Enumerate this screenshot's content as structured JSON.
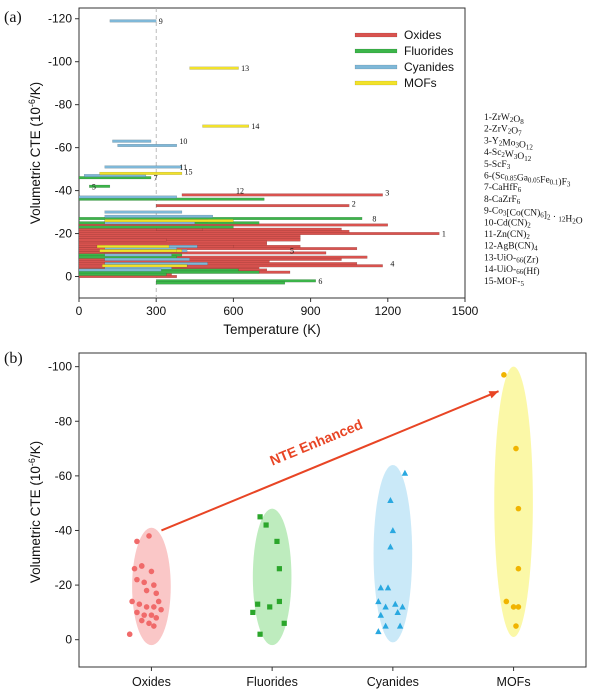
{
  "chart_data": [
    {
      "type": "range-bar",
      "panel_label": "(a)",
      "xlabel": "Temperature (K)",
      "ylabel": "Volumetric CTE (10",
      "ylabel_sup": "-6",
      "ylabel_end": "/K)",
      "xlim": [
        0,
        1500
      ],
      "ylim": [
        10,
        -125
      ],
      "xticks": [
        0,
        300,
        600,
        900,
        1200,
        1500
      ],
      "yticks": [
        0,
        -20,
        -40,
        -60,
        -80,
        -100,
        -120
      ],
      "reference_line_x": 300,
      "legend_position": "top-right",
      "series": [
        {
          "name": "Oxides",
          "color": "#d9534f",
          "bars": [
            [
              0,
              1400,
              -20
            ],
            [
              0,
              1050,
              -21
            ],
            [
              0,
              1200,
              -24
            ],
            [
              0,
              1020,
              -22
            ],
            [
              0,
              860,
              -19
            ],
            [
              0,
              860,
              -18
            ],
            [
              0,
              860,
              -17
            ],
            [
              0,
              730,
              -16
            ],
            [
              0,
              730,
              -15
            ],
            [
              0,
              860,
              -14
            ],
            [
              0,
              300,
              -13
            ],
            [
              0,
              400,
              -12
            ],
            [
              0,
              400,
              -11
            ],
            [
              0,
              1080,
              -13
            ],
            [
              0,
              960,
              -11
            ],
            [
              0,
              1120,
              -9
            ],
            [
              0,
              1020,
              -8
            ],
            [
              0,
              740,
              -7
            ],
            [
              0,
              700,
              -4
            ],
            [
              0,
              1180,
              -5
            ],
            [
              0,
              1080,
              -6
            ],
            [
              0,
              730,
              -3
            ],
            [
              0,
              820,
              -2
            ],
            [
              0,
              360,
              -1
            ],
            [
              0,
              380,
              0
            ],
            [
              300,
              600,
              -14
            ],
            [
              300,
              480,
              -22
            ],
            [
              300,
              380,
              -27
            ],
            [
              300,
              1050,
              -33
            ],
            [
              400,
              1180,
              -38
            ],
            [
              0,
              340,
              -17
            ]
          ]
        },
        {
          "name": "Fluorides",
          "color": "#3cb54a",
          "bars": [
            [
              0,
              1100,
              -27
            ],
            [
              0,
              720,
              -36
            ],
            [
              0,
              280,
              -46
            ],
            [
              40,
              120,
              -42
            ],
            [
              0,
              700,
              -25
            ],
            [
              0,
              600,
              -23
            ],
            [
              0,
              400,
              -10
            ],
            [
              0,
              380,
              -9
            ],
            [
              0,
              620,
              -3
            ],
            [
              0,
              700,
              -2
            ],
            [
              0,
              340,
              -1
            ],
            [
              300,
              920,
              2
            ],
            [
              300,
              800,
              3
            ]
          ]
        },
        {
          "name": "Cyanides",
          "color": "#7fb8d8",
          "bars": [
            [
              120,
              300,
              -119
            ],
            [
              100,
              400,
              -51
            ],
            [
              20,
              260,
              -47
            ],
            [
              130,
              280,
              -63
            ],
            [
              150,
              380,
              -61
            ],
            [
              0,
              380,
              -37
            ],
            [
              100,
              400,
              -30
            ],
            [
              100,
              520,
              -28
            ],
            [
              100,
              500,
              -26
            ],
            [
              100,
              450,
              -25
            ],
            [
              100,
              460,
              -14
            ],
            [
              100,
              380,
              -13
            ],
            [
              100,
              420,
              -12
            ],
            [
              100,
              360,
              -10
            ],
            [
              100,
              430,
              -8
            ],
            [
              100,
              500,
              -6
            ],
            [
              100,
              420,
              -5
            ],
            [
              100,
              360,
              -4
            ],
            [
              0,
              320,
              -3
            ]
          ]
        },
        {
          "name": "MOFs",
          "color": "#f2e22a",
          "bars": [
            [
              430,
              620,
              -97
            ],
            [
              480,
              660,
              -70
            ],
            [
              80,
              400,
              -48
            ],
            [
              70,
              350,
              -14
            ],
            [
              90,
              400,
              -12
            ],
            [
              80,
              380,
              -12
            ],
            [
              100,
              600,
              -26
            ],
            [
              90,
              420,
              -5
            ]
          ]
        }
      ],
      "annotations": [
        {
          "text": "1",
          "x": 1410,
          "y": -20
        },
        {
          "text": "2",
          "x": 1060,
          "y": -34
        },
        {
          "text": "3",
          "x": 1190,
          "y": -39
        },
        {
          "text": "4",
          "x": 1210,
          "y": -6
        },
        {
          "text": "5",
          "x": 50,
          "y": -42
        },
        {
          "text": "5",
          "x": 820,
          "y": -12
        },
        {
          "text": "6",
          "x": 930,
          "y": 2
        },
        {
          "text": "7",
          "x": 290,
          "y": -46
        },
        {
          "text": "8",
          "x": 1140,
          "y": -27
        },
        {
          "text": "9",
          "x": 310,
          "y": -119
        },
        {
          "text": "10",
          "x": 390,
          "y": -63
        },
        {
          "text": "11",
          "x": 390,
          "y": -51
        },
        {
          "text": "12",
          "x": 610,
          "y": -40
        },
        {
          "text": "13",
          "x": 630,
          "y": -97
        },
        {
          "text": "14",
          "x": 670,
          "y": -70
        },
        {
          "text": "15",
          "x": 410,
          "y": -49
        }
      ],
      "compound_list": [
        "1-ZrW2O8",
        "2-ZrV2O7",
        "3-Y2Mo3O12",
        "4-Sc2W3O12",
        "5-ScF3",
        "6-(Sc0.85Ga0.05Fe0.1)F3",
        "7-CaHfF6",
        "8-CaZrF6",
        "9-Co3[Co(CN)6]2 · 12H2O",
        "10-Cd(CN)2",
        "11-Zn(CN)2",
        "12-AgB(CN)4",
        "13-UiO-66(Zr)",
        "14-UiO-66(Hf)",
        "15-MOF-5"
      ]
    },
    {
      "type": "scatter",
      "panel_label": "(b)",
      "xlabel": "",
      "ylabel": "Volumetric CTE (10",
      "ylabel_sup": "-6",
      "ylabel_end": "/K)",
      "ylim": [
        10,
        -105
      ],
      "yticks": [
        0,
        -20,
        -40,
        -60,
        -80,
        -100
      ],
      "categories": [
        "Oxides",
        "Fluorides",
        "Cyanides",
        "MOFs"
      ],
      "annotation": {
        "text": "NTE Enhanced",
        "color": "#e84525"
      },
      "series": [
        {
          "name": "Oxides",
          "marker": "circle",
          "color": "#f06a6a",
          "ellipse_color": "#f8b4b4",
          "points": [
            [
              -0.12,
              -36
            ],
            [
              -0.02,
              -38
            ],
            [
              -0.14,
              -26
            ],
            [
              -0.08,
              -27
            ],
            [
              0.0,
              -25
            ],
            [
              -0.12,
              -22
            ],
            [
              -0.06,
              -21
            ],
            [
              0.02,
              -20
            ],
            [
              -0.04,
              -18
            ],
            [
              0.04,
              -17
            ],
            [
              -0.16,
              -14
            ],
            [
              -0.1,
              -13
            ],
            [
              -0.04,
              -12
            ],
            [
              0.02,
              -12
            ],
            [
              0.08,
              -11
            ],
            [
              -0.12,
              -10
            ],
            [
              -0.06,
              -9
            ],
            [
              0.0,
              -9
            ],
            [
              0.04,
              -8
            ],
            [
              -0.08,
              -7
            ],
            [
              -0.02,
              -6
            ],
            [
              0.02,
              -5
            ],
            [
              -0.18,
              -2
            ],
            [
              -0.08,
              -27
            ],
            [
              0.06,
              -14
            ]
          ]
        },
        {
          "name": "Fluorides",
          "marker": "square",
          "color": "#2ba62b",
          "ellipse_color": "#a8e6a8",
          "points": [
            [
              -0.1,
              -45
            ],
            [
              -0.05,
              -42
            ],
            [
              0.04,
              -36
            ],
            [
              0.06,
              -26
            ],
            [
              -0.12,
              -13
            ],
            [
              -0.02,
              -12
            ],
            [
              0.06,
              -14
            ],
            [
              -0.16,
              -10
            ],
            [
              0.1,
              -6
            ],
            [
              -0.1,
              -2
            ]
          ]
        },
        {
          "name": "Cyanides",
          "marker": "triangle",
          "color": "#29a8e0",
          "ellipse_color": "#b8e2f6",
          "points": [
            [
              0.1,
              -61
            ],
            [
              -0.02,
              -51
            ],
            [
              0.0,
              -40
            ],
            [
              -0.02,
              -34
            ],
            [
              -0.1,
              -19
            ],
            [
              -0.04,
              -19
            ],
            [
              -0.12,
              -14
            ],
            [
              0.02,
              -13
            ],
            [
              0.08,
              -12
            ],
            [
              -0.06,
              -12
            ],
            [
              -0.1,
              -9
            ],
            [
              0.04,
              -10
            ],
            [
              -0.06,
              -5
            ],
            [
              0.06,
              -5
            ],
            [
              -0.12,
              -3
            ]
          ]
        },
        {
          "name": "MOFs",
          "marker": "circle",
          "color": "#f0b400",
          "ellipse_color": "#faf58a",
          "points": [
            [
              -0.08,
              -97
            ],
            [
              0.02,
              -70
            ],
            [
              0.04,
              -48
            ],
            [
              0.04,
              -26
            ],
            [
              -0.06,
              -14
            ],
            [
              0.0,
              -12
            ],
            [
              0.04,
              -12
            ],
            [
              0.02,
              -5
            ]
          ]
        }
      ]
    }
  ]
}
